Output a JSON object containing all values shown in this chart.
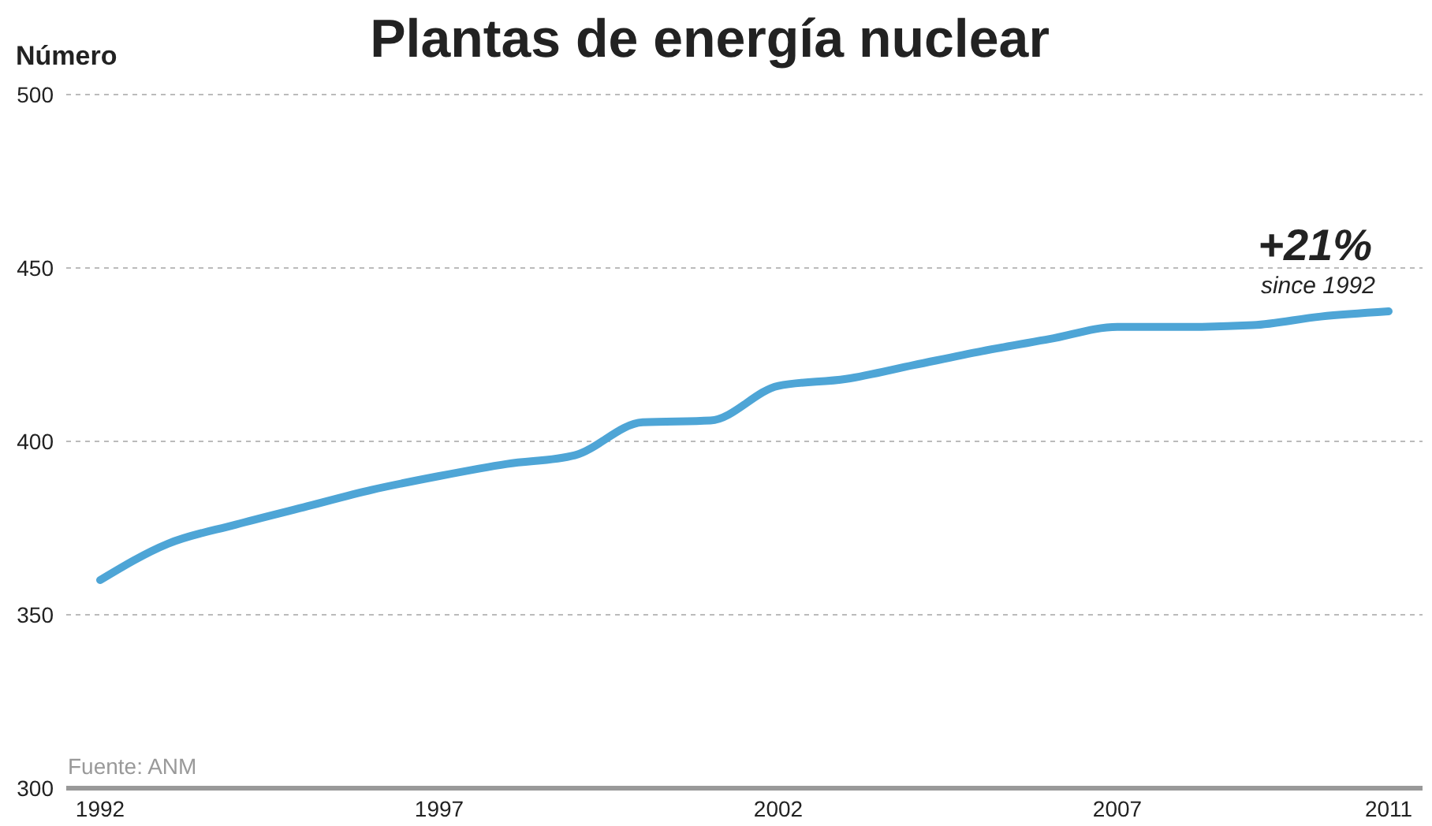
{
  "chart_data": {
    "type": "line",
    "title": "Plantas de energía nuclear",
    "ylabel": "Número",
    "x": [
      1992,
      1993,
      1994,
      1995,
      1996,
      1997,
      1998,
      1999,
      2000,
      2001,
      2002,
      2003,
      2004,
      2005,
      2006,
      2007,
      2008,
      2009,
      2010,
      2011
    ],
    "series": [
      {
        "color": "#4ea5d6",
        "values": [
          360,
          370.5,
          376,
          381,
          386,
          390,
          393.5,
          396,
          405.5,
          406,
          416,
          418,
          422,
          426,
          429.5,
          433,
          433,
          433.5,
          436,
          437.5
        ]
      }
    ],
    "xlim": [
      1991.5,
      2011.5
    ],
    "xticks": [
      1992,
      1997,
      2002,
      2007,
      2011
    ],
    "ylim": [
      300,
      500
    ],
    "yticks": [
      300,
      350,
      400,
      450,
      500
    ],
    "grid": "y",
    "marker": "none",
    "line_style": "solid",
    "annotations": [
      "+21%",
      "since 1992",
      "Fuente: ANM"
    ]
  }
}
